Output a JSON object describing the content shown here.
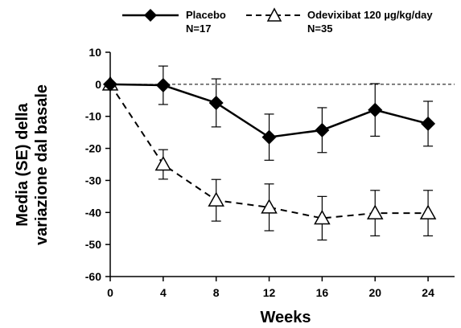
{
  "chart_data": {
    "type": "line",
    "title": "",
    "xlabel": "Weeks",
    "ylabel_lines": [
      "Media (SE) della",
      "variazione dal basale"
    ],
    "x": [
      0,
      4,
      8,
      12,
      16,
      20,
      24
    ],
    "xlim": [
      0,
      26
    ],
    "ylim": [
      -60,
      10
    ],
    "xticks": [
      0,
      4,
      8,
      12,
      16,
      20,
      24
    ],
    "yticks": [
      10,
      0,
      -10,
      -20,
      -30,
      -40,
      -50,
      -60
    ],
    "reference_line": 0,
    "grid": false,
    "legend_position": "top",
    "series": [
      {
        "name": "Placebo",
        "sublabel": "N=17",
        "marker": "diamond",
        "line": "solid",
        "color": "#000000",
        "values": [
          0,
          -0.3,
          -5.8,
          -16.5,
          -14.3,
          -8,
          -12.3
        ],
        "se": [
          0,
          6,
          7.5,
          7.2,
          7,
          8.2,
          7
        ]
      },
      {
        "name": "Odevixibat 120 µg/kg/day",
        "sublabel": "N=35",
        "marker": "triangle-open",
        "line": "dashed",
        "color": "#000000",
        "values": [
          0,
          -25,
          -36.2,
          -38.4,
          -41.8,
          -40.2,
          -40.2
        ],
        "se": [
          0,
          4.6,
          6.5,
          7.3,
          6.8,
          7.1,
          7.1
        ]
      }
    ]
  }
}
